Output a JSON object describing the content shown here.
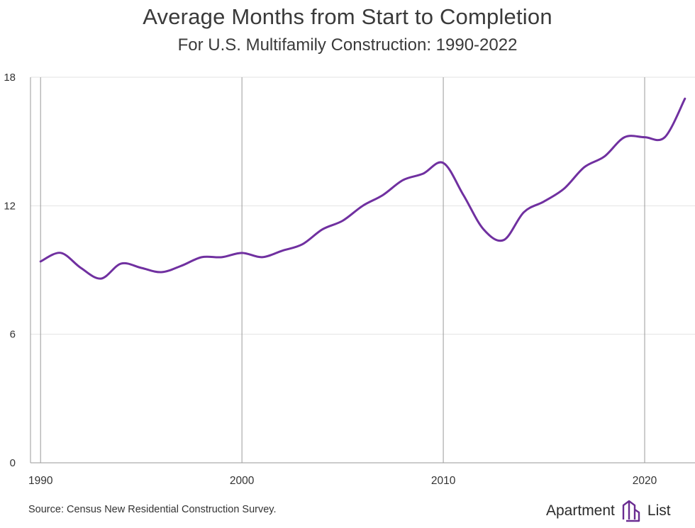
{
  "chart_data": {
    "type": "line",
    "title": "Average Months from Start to Completion",
    "subtitle": "For U.S. Multifamily Construction: 1990-2022",
    "xlabel": "",
    "ylabel": "",
    "xlim": [
      1989.5,
      2022.5
    ],
    "ylim": [
      0,
      18
    ],
    "x_ticks": [
      1990,
      2000,
      2010,
      2020
    ],
    "x_tick_labels": [
      "1990",
      "2000",
      "2010",
      "2020"
    ],
    "y_ticks": [
      0,
      6,
      12,
      18
    ],
    "y_tick_labels": [
      "0",
      "6",
      "12",
      "18"
    ],
    "grid": {
      "vertical": true,
      "horizontal": true
    },
    "series": [
      {
        "name": "Average months from start to completion",
        "color": "#7030a0",
        "x": [
          1990,
          1991,
          1992,
          1993,
          1994,
          1995,
          1996,
          1997,
          1998,
          1999,
          2000,
          2001,
          2002,
          2003,
          2004,
          2005,
          2006,
          2007,
          2008,
          2009,
          2010,
          2011,
          2012,
          2013,
          2014,
          2015,
          2016,
          2017,
          2018,
          2019,
          2020,
          2021,
          2022
        ],
        "values": [
          9.4,
          9.8,
          9.1,
          8.6,
          9.3,
          9.1,
          8.9,
          9.2,
          9.6,
          9.6,
          9.8,
          9.6,
          9.9,
          10.2,
          10.9,
          11.3,
          12.0,
          12.5,
          13.2,
          13.5,
          14.0,
          12.5,
          10.9,
          10.4,
          11.7,
          12.2,
          12.8,
          13.8,
          14.3,
          15.2,
          15.2,
          15.2,
          17.0
        ]
      }
    ]
  },
  "footer": {
    "source": "Source: Census New Residential Construction Survey.",
    "brand_left": "Apartment",
    "brand_right": "List",
    "brand_color": "#6a2c91"
  }
}
